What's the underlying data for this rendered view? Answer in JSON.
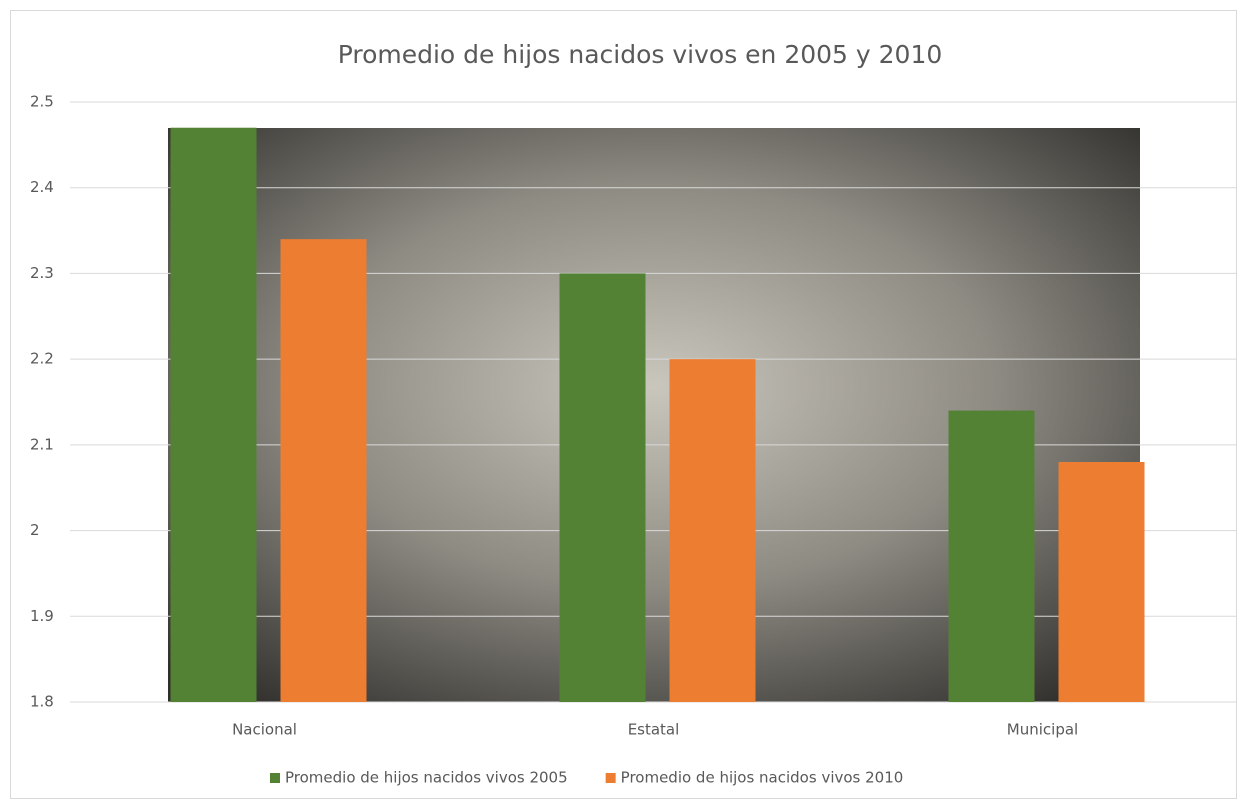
{
  "chart_data": {
    "type": "bar",
    "title": "Promedio de hijos nacidos vivos en 2005 y 2010",
    "categories": [
      "Nacional",
      "Estatal",
      "Municipal"
    ],
    "series": [
      {
        "name": "Promedio de hijos nacidos vivos 2005",
        "color": "#548235",
        "values": [
          2.47,
          2.3,
          2.14
        ]
      },
      {
        "name": "Promedio de hijos nacidos vivos 2010",
        "color": "#ed7d31",
        "values": [
          2.34,
          2.2,
          2.08
        ]
      }
    ],
    "ylim": [
      1.8,
      2.5
    ],
    "yticks": [
      1.8,
      1.9,
      2,
      2.1,
      2.2,
      2.3,
      2.4,
      2.5
    ],
    "grid": true,
    "legend": "bottom"
  }
}
